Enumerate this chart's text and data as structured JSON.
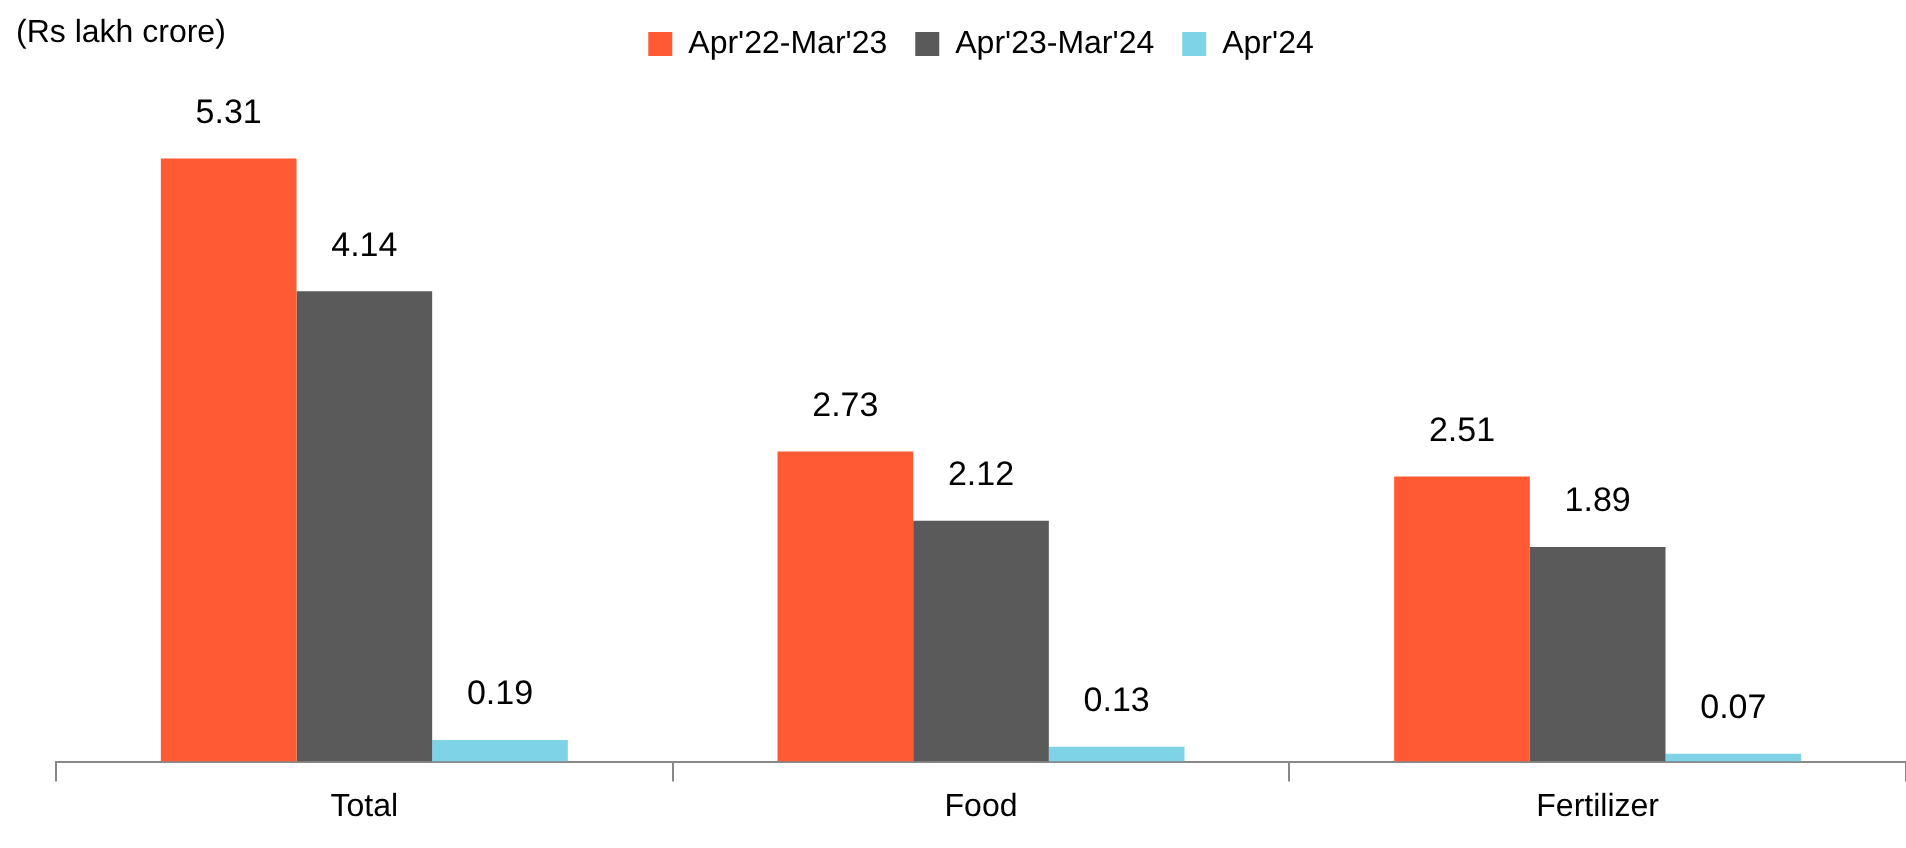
{
  "chart_data": {
    "type": "bar",
    "ylabel": "(Rs lakh crore)",
    "categories": [
      "Total",
      "Food",
      "Fertilizer"
    ],
    "series": [
      {
        "name": "Apr'22-Mar'23",
        "color": "#ff5a33",
        "values": [
          5.31,
          2.73,
          2.51
        ]
      },
      {
        "name": "Apr'23-Mar'24",
        "color": "#5a5a5a",
        "values": [
          4.14,
          2.12,
          1.89
        ]
      },
      {
        "name": "Apr'24",
        "color": "#7fd3e6",
        "values": [
          0.19,
          0.13,
          0.07
        ]
      }
    ],
    "data_labels": true,
    "legend": "top",
    "grid": false
  }
}
